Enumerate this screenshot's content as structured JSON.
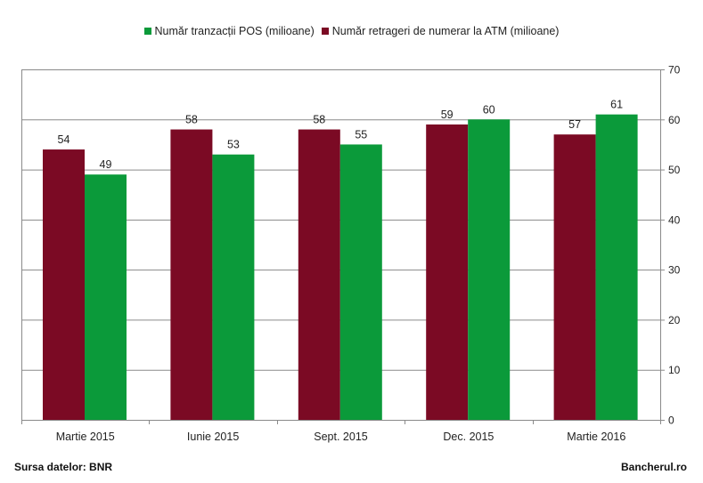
{
  "chart_data": {
    "type": "bar",
    "categories": [
      "Martie 2015",
      "Iunie 2015",
      "Sept. 2015",
      "Dec. 2015",
      "Martie 2016"
    ],
    "series": [
      {
        "name": "Număr retrageri de numerar la ATM (milioane)",
        "color": "#7b0a24",
        "values": [
          54,
          58,
          58,
          59,
          57
        ]
      },
      {
        "name": "Număr tranzacții POS (milioane)",
        "color": "#0b9a3a",
        "values": [
          49,
          53,
          55,
          60,
          61
        ]
      }
    ],
    "legend_order": [
      1,
      0
    ],
    "legend_position": "top",
    "y_axis": {
      "position": "right",
      "ticks": [
        0,
        10,
        20,
        30,
        40,
        50,
        60,
        70
      ]
    },
    "ylim": [
      0,
      70
    ],
    "grid": true,
    "title": "",
    "xlabel": "",
    "ylabel": ""
  },
  "footer": {
    "source": "Sursa datelor: BNR",
    "brand": "Bancherul.ro"
  }
}
